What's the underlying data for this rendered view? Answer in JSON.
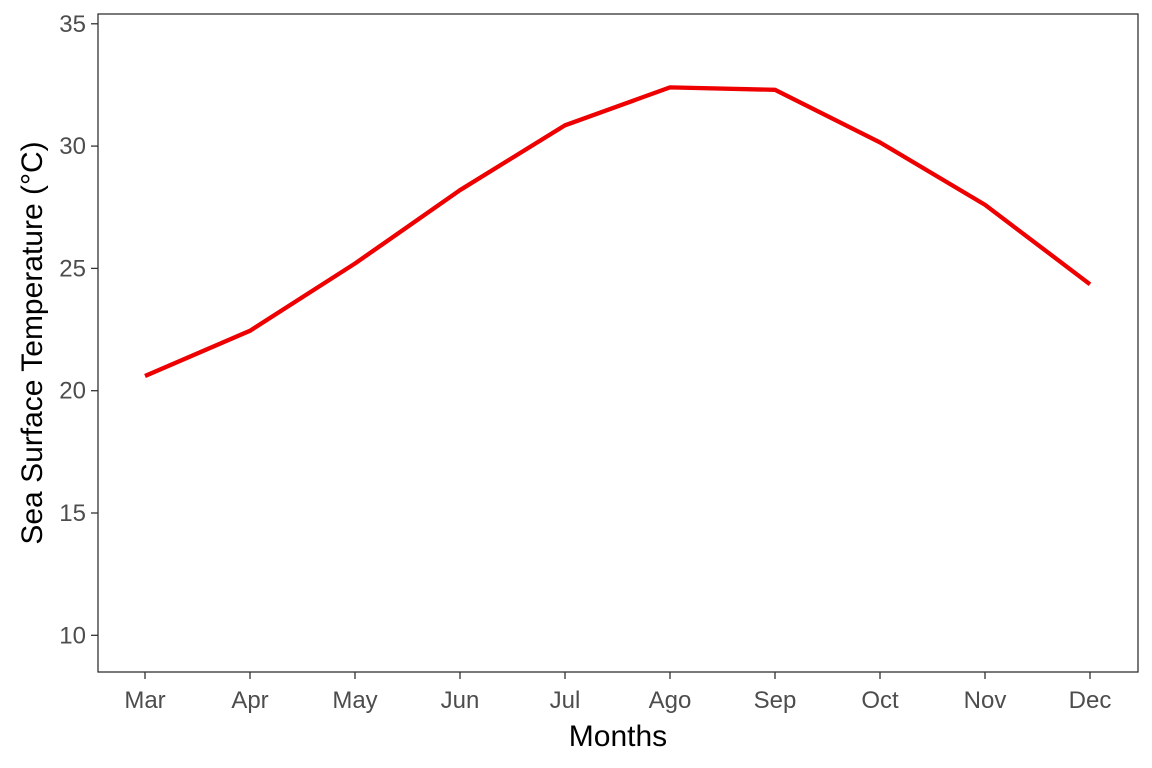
{
  "chart_data": {
    "type": "line",
    "title": "",
    "xlabel": "Months",
    "ylabel": "Sea Surface Temperature (°C)",
    "categories": [
      "Mar",
      "Apr",
      "May",
      "Jun",
      "Jul",
      "Ago",
      "Sep",
      "Oct",
      "Nov",
      "Dec"
    ],
    "series": [
      {
        "values": [
          20.6,
          22.45,
          25.2,
          28.2,
          30.85,
          32.4,
          32.3,
          30.15,
          27.6,
          24.35
        ],
        "color": "#ee0000"
      }
    ],
    "ylim": [
      8.5,
      35.4
    ],
    "yticks": [
      10,
      15,
      20,
      25,
      30,
      35
    ],
    "ytick_labels": [
      "10",
      "15",
      "20",
      "25",
      "30",
      "35"
    ],
    "grid": false,
    "legend": "none"
  }
}
